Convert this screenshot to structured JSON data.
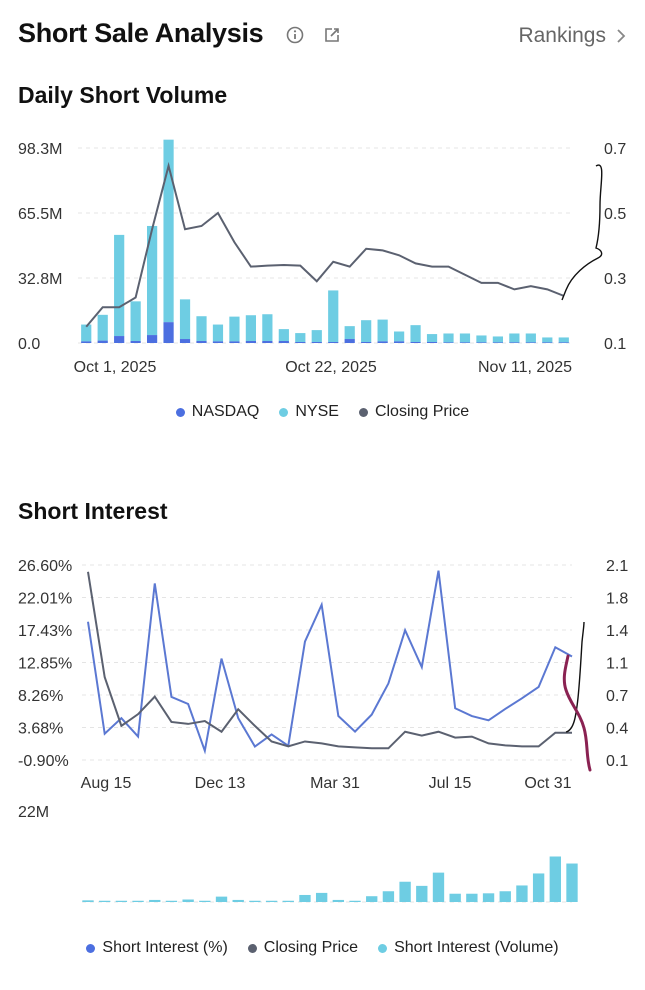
{
  "header": {
    "title": "Short Sale Analysis",
    "rankings_label": "Rankings"
  },
  "colors": {
    "nasdaq": "#4c6fe0",
    "nyse": "#6ecde3",
    "price": "#5b6170",
    "si_pct": "#5b78d2",
    "annotation_dark": "#111111",
    "annotation_red": "#8a2252"
  },
  "daily": {
    "title": "Daily Short Volume",
    "legend": [
      "NASDAQ",
      "NYSE",
      "Closing Price"
    ],
    "chart_data": {
      "type": "bar",
      "title": "Daily Short Volume",
      "y_left_ticks": [
        "98.3M",
        "65.5M",
        "32.8M",
        "0.0"
      ],
      "y_left_range": [
        0,
        98.3
      ],
      "y_right_ticks": [
        "0.7",
        "0.5",
        "0.3",
        "0.1"
      ],
      "y_right_range": [
        0.1,
        0.7
      ],
      "x_tick_labels": [
        "Oct 1, 2025",
        "Oct 22, 2025",
        "Nov 11, 2025"
      ],
      "series": [
        {
          "name": "NASDAQ",
          "values": [
            0.8,
            1.2,
            3.5,
            1.0,
            4.0,
            10.5,
            2.0,
            1.0,
            0.8,
            0.8,
            1.0,
            1.0,
            1.0,
            0.5,
            0.5,
            0.5,
            2.0,
            0.5,
            0.8,
            0.8,
            0.5,
            0.5,
            0.3,
            0.3,
            0.3,
            0.3,
            0.3,
            0.3,
            0.3,
            0.3
          ]
        },
        {
          "name": "NYSE",
          "values": [
            8.5,
            13.0,
            51.0,
            20.0,
            55.0,
            92.0,
            20.0,
            12.5,
            8.5,
            12.5,
            13.0,
            13.5,
            6.0,
            4.5,
            6.0,
            26.0,
            6.5,
            11.0,
            11.0,
            5.0,
            8.5,
            4.0,
            4.5,
            4.5,
            3.5,
            3.0,
            4.5,
            4.5,
            2.5,
            2.5
          ]
        },
        {
          "name": "Closing Price",
          "values": [
            0.15,
            0.21,
            0.21,
            0.24,
            0.45,
            0.645,
            0.45,
            0.46,
            0.5,
            0.41,
            0.335,
            0.338,
            0.34,
            0.338,
            0.29,
            0.35,
            0.335,
            0.39,
            0.385,
            0.37,
            0.345,
            0.335,
            0.335,
            0.31,
            0.285,
            0.285,
            0.265,
            0.275,
            0.265,
            0.245
          ]
        }
      ]
    }
  },
  "interest": {
    "title": "Short Interest",
    "legend": [
      "Short Interest (%)",
      "Closing Price",
      "Short Interest (Volume)"
    ],
    "chart_data": {
      "type": "line",
      "title": "Short Interest",
      "y_left_ticks": [
        "26.60%",
        "22.01%",
        "17.43%",
        "12.85%",
        "8.26%",
        "3.68%",
        "-0.90%"
      ],
      "y_left_range": [
        -0.9,
        26.6
      ],
      "y_right_ticks": [
        "2.1",
        "1.8",
        "1.4",
        "1.1",
        "0.7",
        "0.4",
        "0.1"
      ],
      "y_right_range": [
        0.1,
        2.1
      ],
      "x_tick_labels": [
        "Aug 15",
        "Dec 13",
        "Mar 31",
        "Jul 15",
        "Oct 31"
      ],
      "volume_axis_label": "22M",
      "volume_range": [
        0,
        22
      ],
      "series": [
        {
          "name": "Short Interest (%)",
          "values": [
            18.6,
            2.8,
            5.0,
            2.4,
            24.0,
            8.0,
            7.0,
            0.4,
            13.4,
            5.0,
            1.0,
            2.7,
            1.1,
            15.8,
            21.0,
            5.3,
            3.1,
            5.5,
            9.9,
            17.4,
            12.2,
            25.8,
            6.4,
            5.3,
            4.7,
            6.3,
            7.8,
            9.4,
            15.0,
            13.7
          ]
        },
        {
          "name": "Closing Price",
          "values": [
            2.03,
            0.95,
            0.45,
            0.57,
            0.75,
            0.49,
            0.47,
            0.5,
            0.39,
            0.62,
            0.45,
            0.29,
            0.24,
            0.29,
            0.27,
            0.24,
            0.23,
            0.22,
            0.22,
            0.39,
            0.35,
            0.39,
            0.33,
            0.34,
            0.27,
            0.25,
            0.24,
            0.24,
            0.38,
            0.38
          ]
        },
        {
          "name": "Short Interest (Volume)",
          "values": [
            0.4,
            0.3,
            0.3,
            0.3,
            0.5,
            0.3,
            0.6,
            0.3,
            1.3,
            0.5,
            0.3,
            0.3,
            0.3,
            1.7,
            2.2,
            0.5,
            0.3,
            1.4,
            2.6,
            4.9,
            3.9,
            7.1,
            2.0,
            2.0,
            2.1,
            2.6,
            4.0,
            6.9,
            11.0,
            9.3
          ]
        }
      ]
    }
  }
}
